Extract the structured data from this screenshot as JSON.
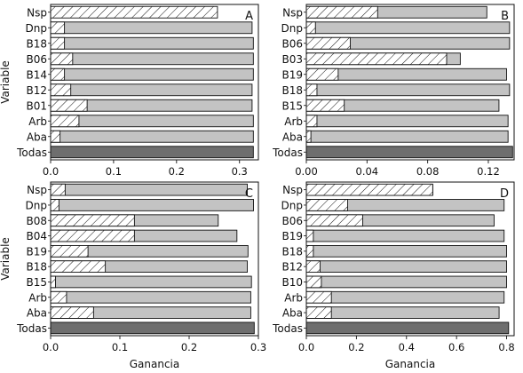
{
  "chart_data": [
    {
      "type": "bar",
      "panel_label": "A",
      "ylabel": "Variable",
      "xlabel": "",
      "categories": [
        "Nsp",
        "Dnp",
        "B18",
        "B06",
        "B14",
        "B12",
        "B01",
        "Arb",
        "Aba",
        "Todas"
      ],
      "series": [
        {
          "values": [
            0.0,
            0.022,
            0.022,
            0.035,
            0.022,
            0.032,
            0.058,
            0.045,
            0.015,
            0.0
          ]
        },
        {
          "values": [
            0.265,
            0.32,
            0.322,
            0.322,
            0.322,
            0.32,
            0.32,
            0.322,
            0.322,
            0.0
          ]
        },
        {
          "values": [
            0.0,
            0.0,
            0.0,
            0.0,
            0.0,
            0.0,
            0.0,
            0.0,
            0.0,
            0.322
          ]
        }
      ],
      "bar_styles": [
        "hatched",
        "light",
        "light",
        "light",
        "light",
        "light",
        "light",
        "light",
        "light",
        "dark"
      ],
      "xlim": [
        0,
        0.33
      ],
      "xticks": [
        0.0,
        0.1,
        0.2,
        0.3
      ],
      "xtick_labels": [
        "0.0",
        "0.1",
        "0.2",
        "0.3"
      ]
    },
    {
      "type": "bar",
      "panel_label": "B",
      "ylabel": "",
      "xlabel": "",
      "categories": [
        "Nsp",
        "Dnp",
        "B06",
        "B03",
        "B19",
        "B18",
        "B15",
        "Arb",
        "Aba",
        "Todas"
      ],
      "series": [
        {
          "values": [
            0.047,
            0.006,
            0.029,
            0.0925,
            0.021,
            0.007,
            0.025,
            0.007,
            0.003,
            0.0
          ]
        },
        {
          "values": [
            0.119,
            0.134,
            0.134,
            0.1015,
            0.132,
            0.134,
            0.127,
            0.133,
            0.133,
            0.0
          ]
        },
        {
          "values": [
            0.0,
            0.0,
            0.0,
            0.0,
            0.0,
            0.0,
            0.0,
            0.0,
            0.0,
            0.136
          ]
        }
      ],
      "bar_styles": [
        "light",
        "light",
        "light",
        "light",
        "light",
        "light",
        "light",
        "light",
        "light",
        "dark"
      ],
      "xlim": [
        0,
        0.137
      ],
      "xticks": [
        0.0,
        0.04,
        0.08,
        0.12
      ],
      "xtick_labels": [
        "0.00",
        "0.04",
        "0.08",
        "0.12"
      ]
    },
    {
      "type": "bar",
      "panel_label": "C",
      "ylabel": "Variable",
      "xlabel": "Ganancia",
      "categories": [
        "Nsp",
        "Dnp",
        "B08",
        "B04",
        "B19",
        "B18",
        "B15",
        "Arb",
        "Aba",
        "Todas"
      ],
      "series": [
        {
          "values": [
            0.021,
            0.012,
            0.121,
            0.121,
            0.054,
            0.079,
            0.007,
            0.023,
            0.062,
            0.0
          ]
        },
        {
          "values": [
            0.284,
            0.293,
            0.242,
            0.269,
            0.285,
            0.284,
            0.29,
            0.289,
            0.289,
            0.0
          ]
        },
        {
          "values": [
            0.0,
            0.0,
            0.0,
            0.0,
            0.0,
            0.0,
            0.0,
            0.0,
            0.0,
            0.294
          ]
        }
      ],
      "bar_styles": [
        "light",
        "light",
        "light",
        "light",
        "light",
        "light",
        "light",
        "light",
        "light",
        "dark"
      ],
      "xlim": [
        0,
        0.3
      ],
      "xticks": [
        0.0,
        0.1,
        0.2,
        0.3
      ],
      "xtick_labels": [
        "0.0",
        "0.1",
        "0.2",
        "0.3"
      ]
    },
    {
      "type": "bar",
      "panel_label": "D",
      "ylabel": "",
      "xlabel": "Ganancia",
      "categories": [
        "Nsp",
        "Dnp",
        "B06",
        "B19",
        "B18",
        "B12",
        "B10",
        "Arb",
        "Aba",
        "Todas"
      ],
      "series": [
        {
          "values": [
            0.505,
            0.165,
            0.225,
            0.028,
            0.028,
            0.055,
            0.06,
            0.1,
            0.1,
            0.0
          ]
        },
        {
          "values": [
            0.505,
            0.79,
            0.75,
            0.79,
            0.8,
            0.8,
            0.8,
            0.79,
            0.77,
            0.0
          ]
        },
        {
          "values": [
            0.0,
            0.0,
            0.0,
            0.0,
            0.0,
            0.0,
            0.0,
            0.0,
            0.0,
            0.808
          ]
        }
      ],
      "bar_styles": [
        "hatched",
        "light",
        "light",
        "light",
        "light",
        "light",
        "light",
        "light",
        "light",
        "dark"
      ],
      "xlim": [
        0,
        0.83
      ],
      "xticks": [
        0.0,
        0.2,
        0.4,
        0.6,
        0.8
      ],
      "xtick_labels": [
        "0.0",
        "0.2",
        "0.4",
        "0.6",
        "0.8"
      ]
    }
  ],
  "colors": {
    "light_bar": "#c3c3c3",
    "dark_bar": "#6e6e6e",
    "hatched_bar": "#ffffff",
    "hatch": "#111111",
    "frame": "#111111"
  }
}
